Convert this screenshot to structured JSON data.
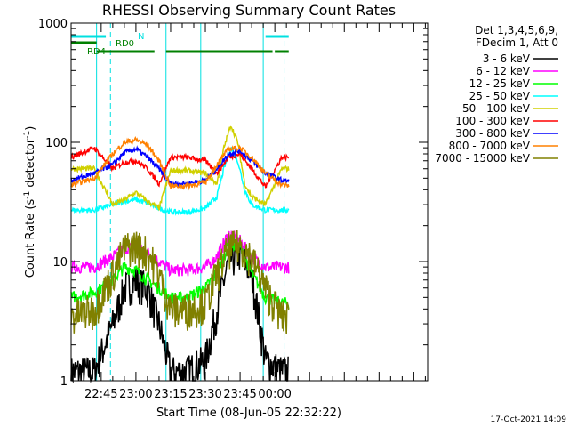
{
  "chart_data": {
    "type": "line",
    "title": "RHESSI Observing Summary Count Rates",
    "xlabel": "Start Time (08-Jun-05 22:32:22)",
    "ylabel_main": "Count Rate (s",
    "ylabel_sup1": "-1",
    "ylabel_mid": " detector",
    "ylabel_sup2": "-1",
    "ylabel_end": ")",
    "y_scale": "log",
    "ylim": [
      1,
      1000
    ],
    "xlim": [
      "22:32",
      "01:06"
    ],
    "x_ticks": [
      "22:45",
      "23:00",
      "23:15",
      "23:30",
      "23:45",
      "00:00"
    ],
    "y_ticks": [
      "1",
      "10",
      "100",
      "1000"
    ],
    "detector_info_line1": "Det 1,3,4,5,6,9,",
    "detector_info_line2": "FDecim 1, Att 0",
    "timestamp": "17-Oct-2021 14:09",
    "annotations": {
      "n_label": "N",
      "rd0_label": "RD0",
      "rd4_label": "RD4"
    },
    "saa_boundaries": [
      "22:32",
      "22:43",
      "23:13",
      "23:28",
      "23:55"
    ],
    "night_boundaries": [
      "22:49",
      "00:04"
    ],
    "n_segments": [
      [
        "22:32",
        "22:47"
      ],
      [
        "23:56",
        "00:06"
      ]
    ],
    "rd0_segments": [
      [
        "22:32",
        "22:43"
      ]
    ],
    "rd4_segments": [
      [
        "22:43",
        "23:08"
      ],
      [
        "23:13",
        "23:33"
      ],
      [
        "23:33",
        "23:59"
      ],
      [
        "00:00",
        "00:06"
      ]
    ],
    "series": [
      {
        "name": "3 - 6 keV",
        "color": "#000000",
        "x": [
          "22:32",
          "22:42",
          "22:50",
          "22:55",
          "23:00",
          "23:05",
          "23:10",
          "23:15",
          "23:22",
          "23:30",
          "23:35",
          "23:40",
          "23:45",
          "23:50",
          "23:56",
          "00:03",
          "00:06"
        ],
        "y": [
          1.2,
          1.2,
          3,
          6,
          7,
          6,
          3,
          1.2,
          1.2,
          1.5,
          4,
          10,
          12,
          8,
          1.5,
          1.2,
          1.2
        ]
      },
      {
        "name": "6 - 12 keV",
        "color": "#ff00ff",
        "x": [
          "22:32",
          "22:42",
          "22:50",
          "22:55",
          "23:00",
          "23:05",
          "23:10",
          "23:15",
          "23:22",
          "23:30",
          "23:35",
          "23:40",
          "23:45",
          "23:50",
          "23:56",
          "00:03",
          "00:06"
        ],
        "y": [
          9,
          9,
          11,
          13,
          13,
          12,
          10,
          8.5,
          8.5,
          9,
          11,
          17,
          15,
          11,
          9,
          9,
          9
        ]
      },
      {
        "name": "12 - 25 keV",
        "color": "#00ff00",
        "x": [
          "22:32",
          "22:42",
          "22:50",
          "22:55",
          "23:00",
          "23:05",
          "23:10",
          "23:15",
          "23:22",
          "23:30",
          "23:35",
          "23:40",
          "23:45",
          "23:50",
          "23:56",
          "00:03",
          "00:06"
        ],
        "y": [
          5,
          5.5,
          7,
          9,
          8.5,
          7,
          6,
          5,
          5,
          6,
          8,
          14,
          13,
          8,
          5,
          4.5,
          4.5
        ]
      },
      {
        "name": "25 - 50 keV",
        "color": "#00ffff",
        "x": [
          "22:32",
          "22:42",
          "22:50",
          "22:55",
          "23:00",
          "23:05",
          "23:10",
          "23:15",
          "23:22",
          "23:30",
          "23:35",
          "23:38",
          "23:41",
          "23:44",
          "23:47",
          "23:50",
          "23:56",
          "00:03",
          "00:06"
        ],
        "y": [
          27,
          27,
          30,
          32,
          33,
          31,
          28,
          26,
          26,
          28,
          35,
          60,
          90,
          70,
          40,
          30,
          27,
          27,
          27
        ]
      },
      {
        "name": "50 - 100 keV",
        "color": "#d0d000",
        "x": [
          "22:32",
          "22:42",
          "22:50",
          "22:55",
          "23:00",
          "23:05",
          "23:10",
          "23:15",
          "23:22",
          "23:30",
          "23:35",
          "23:38",
          "23:41",
          "23:44",
          "23:47",
          "23:50",
          "23:56",
          "00:03",
          "00:06"
        ],
        "y": [
          60,
          60,
          30,
          33,
          38,
          32,
          28,
          58,
          58,
          55,
          45,
          90,
          140,
          100,
          45,
          35,
          30,
          60,
          60
        ]
      },
      {
        "name": "100 - 300 keV",
        "color": "#ff0000",
        "x": [
          "22:32",
          "22:42",
          "22:50",
          "22:55",
          "23:00",
          "23:05",
          "23:10",
          "23:15",
          "23:22",
          "23:30",
          "23:35",
          "23:40",
          "23:45",
          "23:50",
          "23:56",
          "00:03",
          "00:06"
        ],
        "y": [
          75,
          90,
          60,
          68,
          70,
          60,
          45,
          75,
          75,
          70,
          55,
          75,
          80,
          60,
          42,
          75,
          75
        ]
      },
      {
        "name": "300 - 800 keV",
        "color": "#0000ff",
        "x": [
          "22:32",
          "22:42",
          "22:50",
          "22:55",
          "23:00",
          "23:05",
          "23:10",
          "23:15",
          "23:22",
          "23:30",
          "23:35",
          "23:40",
          "23:45",
          "23:50",
          "23:56",
          "00:03",
          "00:06"
        ],
        "y": [
          48,
          55,
          65,
          82,
          88,
          75,
          60,
          45,
          45,
          48,
          60,
          80,
          85,
          70,
          55,
          48,
          47
        ]
      },
      {
        "name": "800 - 7000 keV",
        "color": "#ff8000",
        "x": [
          "22:32",
          "22:42",
          "22:50",
          "22:55",
          "23:00",
          "23:05",
          "23:10",
          "23:15",
          "23:22",
          "23:30",
          "23:35",
          "23:40",
          "23:45",
          "23:50",
          "23:56",
          "00:03",
          "00:06"
        ],
        "y": [
          44,
          50,
          80,
          100,
          105,
          95,
          70,
          43,
          43,
          46,
          65,
          88,
          90,
          75,
          55,
          44,
          43
        ]
      },
      {
        "name": "7000 - 15000 keV",
        "color": "#808000",
        "x": [
          "22:32",
          "22:42",
          "22:50",
          "22:55",
          "23:00",
          "23:05",
          "23:10",
          "23:15",
          "23:22",
          "23:30",
          "23:35",
          "23:40",
          "23:45",
          "23:50",
          "23:56",
          "00:03",
          "00:06"
        ],
        "y": [
          3.5,
          4,
          8,
          13,
          14,
          12,
          8,
          4,
          4,
          4.5,
          8,
          13,
          14,
          11,
          6,
          3.5,
          3.5
        ]
      }
    ]
  }
}
